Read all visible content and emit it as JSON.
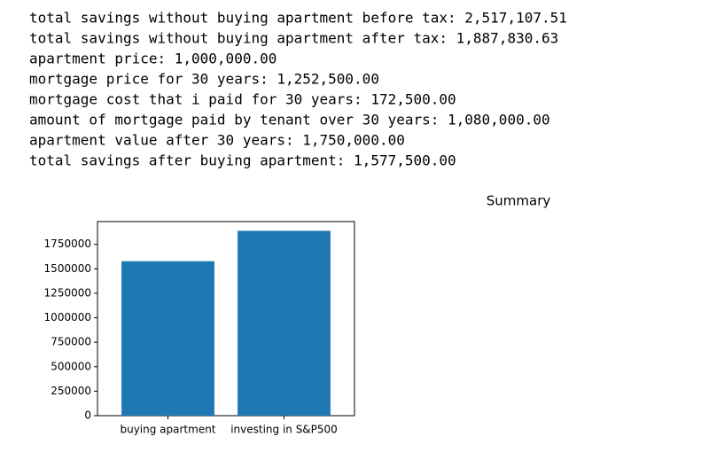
{
  "output_lines": [
    "total savings without buying apartment before tax: 2,517,107.51",
    "total savings without buying apartment after tax: 1,887,830.63",
    "apartment price: 1,000,000.00",
    "mortgage price for 30 years: 1,252,500.00",
    "mortgage cost that i paid for 30 years: 172,500.00",
    "amount of mortgage paid by tenant over 30 years: 1,080,000.00",
    "apartment value after 30 years: 1,750,000.00",
    "total savings after buying apartment: 1,577,500.00"
  ],
  "chart_data": {
    "type": "bar",
    "title": "Summary",
    "categories": [
      "buying apartment",
      "investing in S&P500"
    ],
    "values": [
      1577500,
      1887830.63
    ],
    "color": "#1f77b4",
    "ylim": [
      0,
      1982222
    ],
    "yticks": [
      0,
      250000,
      500000,
      750000,
      1000000,
      1250000,
      1500000,
      1750000
    ]
  }
}
